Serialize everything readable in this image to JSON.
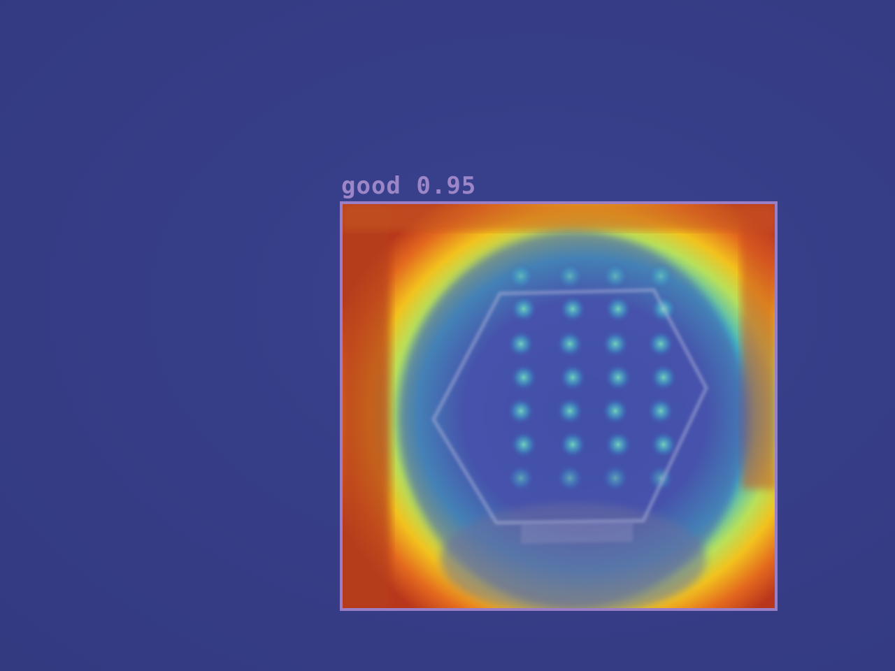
{
  "detection": {
    "class_label": "good",
    "confidence": "0.95",
    "box_color": "#9b7fc6",
    "label_color": "#9c86c8"
  },
  "colors": {
    "background": "#363d85",
    "heat_hot": "#d4451f",
    "heat_warm": "#f2c21e",
    "heat_mid": "#3fd6c0",
    "heat_cool": "#3b4fb0"
  },
  "object": {
    "shape": "hexagon-nut",
    "icon": "hexagon-icon"
  }
}
